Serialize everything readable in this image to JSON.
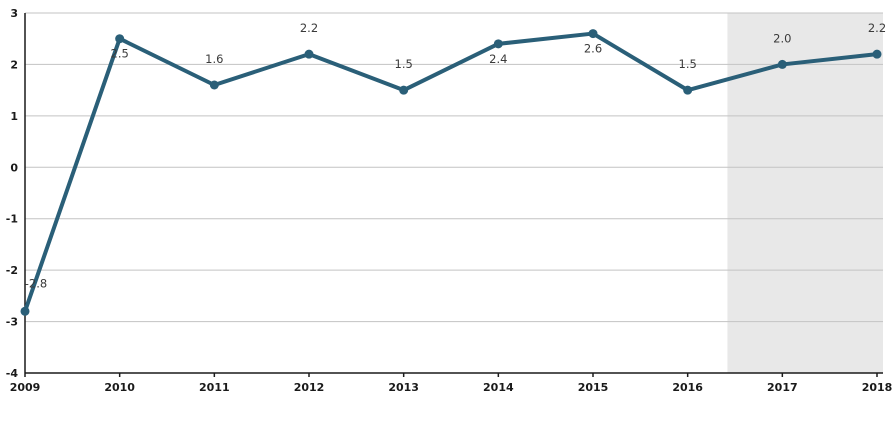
{
  "chart_data": {
    "type": "line",
    "title": "",
    "xlabel": "",
    "ylabel": "",
    "categories": [
      "2009",
      "2010",
      "2011",
      "2012",
      "2013",
      "2014",
      "2015",
      "2016",
      "2017",
      "2018"
    ],
    "series": [
      {
        "name": "value",
        "values": [
          -2.8,
          2.5,
          1.6,
          2.2,
          1.5,
          2.4,
          2.6,
          1.5,
          2.0,
          2.2
        ],
        "data_labels": [
          "-2.8",
          "2.5",
          "1.6",
          "2.2",
          "1.5",
          "2.4",
          "2.6",
          "1.5",
          "2.0",
          "2.2"
        ],
        "label_positions": [
          "above-right",
          "below",
          "above",
          "above",
          "above",
          "below",
          "below",
          "above",
          "above",
          "above"
        ]
      }
    ],
    "y_ticks": [
      "3",
      "2",
      "1",
      "0",
      "-1",
      "-2",
      "-3",
      "-4"
    ],
    "ylim": [
      -4,
      3
    ],
    "grid": "horizontal",
    "legend": "none",
    "shaded_region": {
      "covers": [
        "2017",
        "2018"
      ],
      "x_start_year": 2016.42,
      "x_end_year": 2018.07
    },
    "colors": {
      "line": "#2a5f78",
      "marker": "#2a5f78",
      "shaded_region": "#e8e8e8",
      "gridline": "#c3c3c3",
      "axis": "#1a1a1a",
      "tick_label": "#1a1a1a",
      "data_label": "#3a3a3a",
      "background": "#ffffff"
    }
  }
}
